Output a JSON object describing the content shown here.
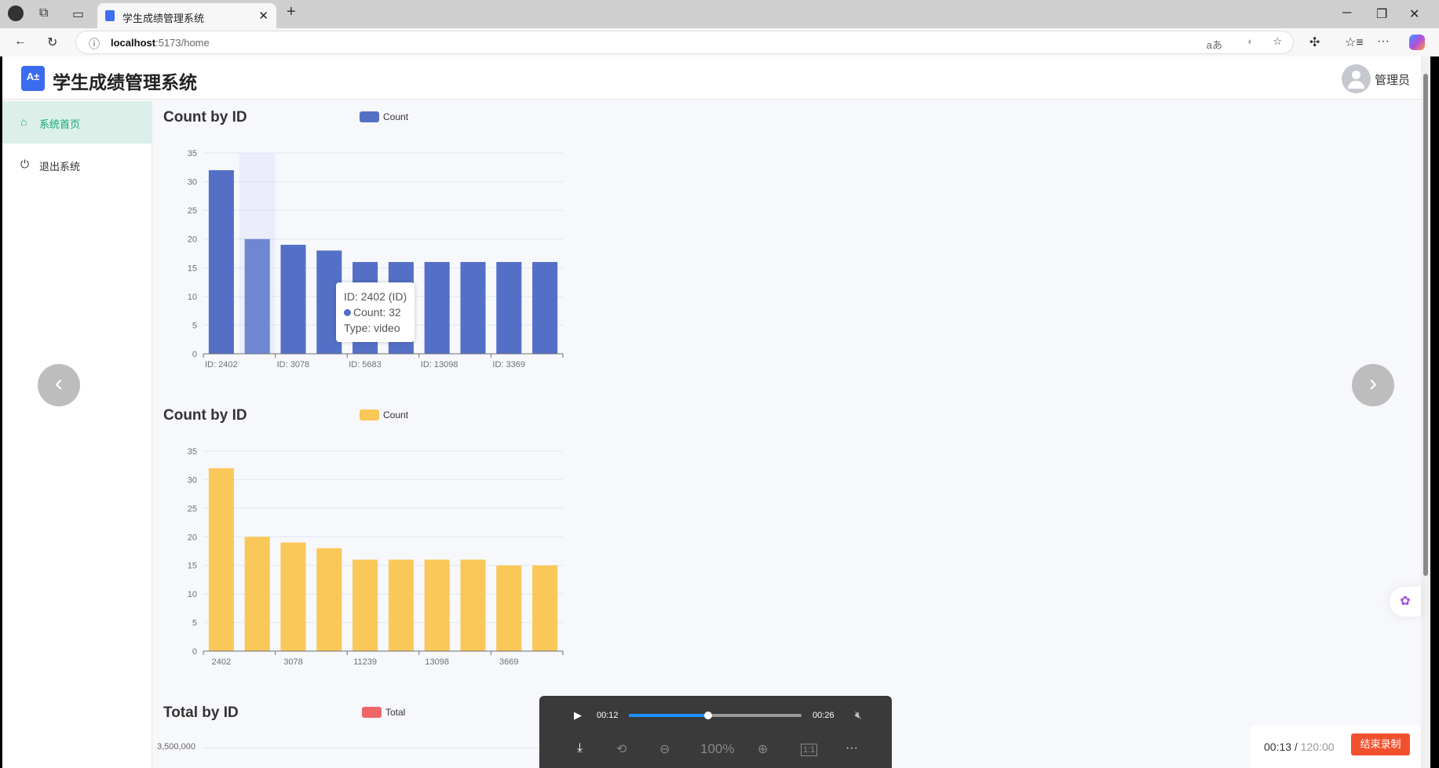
{
  "browser": {
    "tab_title": "学生成绩管理系统",
    "url_host": "localhost",
    "url_path": ":5173/home"
  },
  "app": {
    "title": "学生成绩管理系统",
    "logo_text": "A±",
    "user": "管理员"
  },
  "sidebar": {
    "items": [
      {
        "label": "系统首页",
        "icon": "home-icon",
        "active": true
      },
      {
        "label": "退出系统",
        "icon": "power-icon",
        "active": false
      }
    ]
  },
  "chart_data": [
    {
      "type": "bar",
      "title": "Count by ID",
      "legend": [
        "Count"
      ],
      "color": "#5470c6",
      "categories": [
        "ID: 2402",
        "",
        "ID: 3078",
        "",
        "ID: 5683",
        "",
        "ID: 13098",
        "",
        "ID: 3369",
        ""
      ],
      "values": [
        32,
        20,
        19,
        18,
        16,
        16,
        16,
        16,
        16,
        16
      ],
      "yticks": [
        "0",
        "5",
        "10",
        "15",
        "20",
        "25",
        "30",
        "35"
      ],
      "ylim": [
        0,
        35
      ],
      "grid": true,
      "highlighted_index": 1
    },
    {
      "type": "bar",
      "title": "Count by ID",
      "legend": [
        "Count"
      ],
      "color": "#fac858",
      "categories": [
        "2402",
        "",
        "3078",
        "",
        "11239",
        "",
        "13098",
        "",
        "3669",
        ""
      ],
      "values": [
        32,
        20,
        19,
        18,
        16,
        16,
        16,
        16,
        15,
        15
      ],
      "yticks": [
        "0",
        "5",
        "10",
        "15",
        "20",
        "25",
        "30",
        "35"
      ],
      "ylim": [
        0,
        35
      ],
      "grid": true
    },
    {
      "type": "bar",
      "title": "Total by ID",
      "legend": [
        "Total"
      ],
      "color": "#ee6666",
      "yticks": [
        "3,500,000"
      ]
    }
  ],
  "tooltip": {
    "line1": "ID: 2402 (ID)",
    "line2": "Count: 32",
    "line3": "Type: video"
  },
  "player": {
    "current": "00:12",
    "duration": "00:26",
    "progress": 0.46,
    "zoom": "100%",
    "ratio_label": "1:1"
  },
  "recording": {
    "elapsed": "00:13",
    "separator": " / ",
    "limit": "120:00",
    "stop_label": "结束录制"
  }
}
